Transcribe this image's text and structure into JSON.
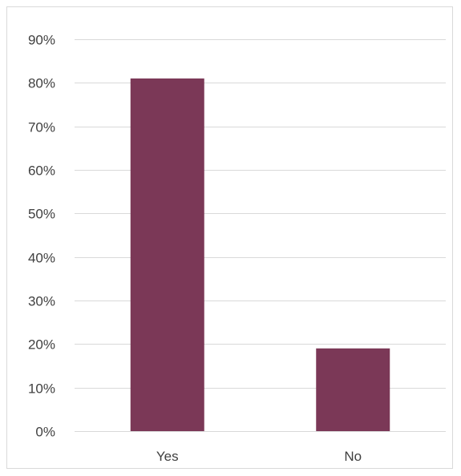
{
  "chart_data": {
    "type": "bar",
    "categories": [
      "Yes",
      "No"
    ],
    "values": [
      81,
      19
    ],
    "value_unit": "percent",
    "ylim": [
      0,
      90
    ],
    "yticks": [
      0,
      10,
      20,
      30,
      40,
      50,
      60,
      70,
      80,
      90
    ],
    "ytick_labels": [
      "0%",
      "10%",
      "20%",
      "30%",
      "40%",
      "50%",
      "60%",
      "70%",
      "80%",
      "90%"
    ],
    "grid": true,
    "legend": "none",
    "title": "",
    "xlabel": "",
    "ylabel": ""
  },
  "colors": {
    "bar": "#7b3857",
    "grid": "#d9d9d9",
    "text": "#404040",
    "border": "#d9d9d9",
    "background": "#ffffff"
  }
}
